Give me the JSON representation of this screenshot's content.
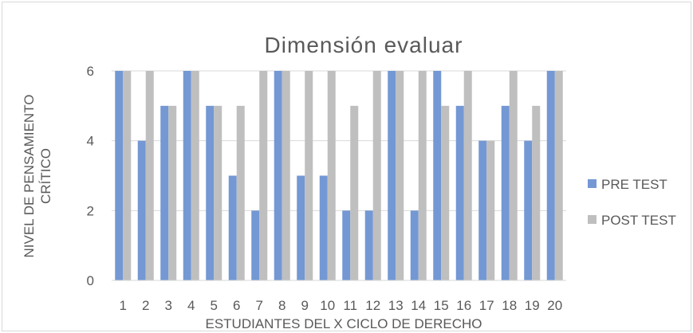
{
  "chart_data": {
    "type": "bar",
    "title": "Dimensión evaluar",
    "xlabel": "ESTUDIANTES DEL X CICLO DE DERECHO",
    "ylabel_lines": [
      "NIVEL DE PENSAMIENTO",
      "CRÍTICO"
    ],
    "categories": [
      "1",
      "2",
      "3",
      "4",
      "5",
      "6",
      "7",
      "8",
      "9",
      "10",
      "11",
      "12",
      "13",
      "14",
      "15",
      "16",
      "17",
      "18",
      "19",
      "20"
    ],
    "ylim": [
      0,
      6
    ],
    "yticks": [
      "0",
      "2",
      "4",
      "6"
    ],
    "grid": true,
    "legend_position": "right",
    "series": [
      {
        "name": "PRE TEST",
        "color": "#7398D4",
        "values": [
          6,
          4,
          5,
          6,
          5,
          3,
          2,
          6,
          3,
          3,
          2,
          2,
          6,
          2,
          6,
          5,
          4,
          5,
          4,
          6
        ]
      },
      {
        "name": "POST TEST",
        "color": "#BFBFBF",
        "values": [
          6,
          6,
          5,
          6,
          5,
          5,
          6,
          6,
          6,
          6,
          5,
          6,
          6,
          6,
          5,
          6,
          4,
          6,
          5,
          6
        ]
      }
    ]
  }
}
